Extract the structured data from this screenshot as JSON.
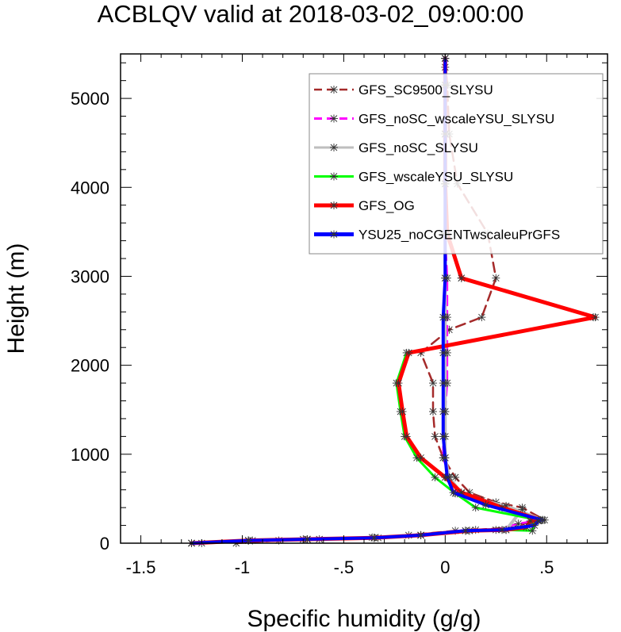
{
  "chart_data": {
    "type": "line",
    "title": "ACBLQV valid at 2018-03-02_09:00:00",
    "xlabel": "Specific humidity (g/g)",
    "ylabel": "Height (m)",
    "xlim": [
      -1.6,
      0.8
    ],
    "ylim": [
      0,
      5500
    ],
    "xticks": [
      -1.5,
      -1,
      -0.5,
      0,
      0.5
    ],
    "xtick_labels": [
      "-1.5",
      "-1",
      "-.5",
      "0",
      ".5"
    ],
    "yticks": [
      0,
      1000,
      2000,
      3000,
      4000,
      5000
    ],
    "ytick_labels": [
      "0",
      "1000",
      "2000",
      "3000",
      "4000",
      "5000"
    ],
    "grid": false,
    "legend_position": "top-right",
    "series": [
      {
        "name": "GFS_SC9500_SLYSU",
        "color": "#a52a2a",
        "dash": "dashed",
        "x": [
          -1.03,
          -0.82,
          -0.62,
          -0.36,
          -0.18,
          0.05,
          0.15,
          0.35,
          0.42,
          0.49,
          0.38,
          0.25,
          0.12,
          0.05,
          -0.01,
          -0.05,
          -0.06,
          -0.06,
          -0.12,
          0.02,
          0.18,
          0.25,
          0.21,
          0.06,
          0.02,
          0.01,
          0.0
        ],
        "y": [
          0,
          30,
          45,
          65,
          90,
          140,
          150,
          180,
          250,
          260,
          400,
          460,
          570,
          740,
          960,
          1200,
          1480,
          1800,
          2140,
          2400,
          2540,
          2980,
          3480,
          4040,
          4600,
          5150,
          5450
        ]
      },
      {
        "name": "GFS_noSC_wscaleYSU_SLYSU",
        "color": "#ff00ff",
        "dash": "dashed",
        "x": [
          -1.25,
          -0.97,
          -0.68,
          -0.33,
          -0.12,
          0.1,
          0.25,
          0.36,
          0.44,
          0.48,
          0.2,
          0.06,
          0.02,
          -0.01,
          -0.01,
          0.0,
          0.01,
          0.01,
          0.01,
          0.01,
          0.0,
          0.0,
          0.0,
          0.0,
          0.0,
          0.0
        ],
        "y": [
          0,
          30,
          45,
          60,
          90,
          140,
          150,
          220,
          250,
          260,
          450,
          560,
          750,
          960,
          1200,
          1480,
          1800,
          2140,
          2540,
          2980,
          3480,
          4040,
          4600,
          5150,
          5350,
          5450
        ]
      },
      {
        "name": "GFS_noSC_SLYSU",
        "color": "#bebebe",
        "dash": "solid",
        "x": [
          -1.2,
          -0.95,
          -0.7,
          -0.35,
          -0.12,
          0.12,
          0.3,
          0.38,
          0.42,
          0.48,
          0.3,
          0.18,
          0.08,
          0.02,
          0.0,
          0.0,
          0.0,
          0.0,
          0.0,
          0.0,
          0.0,
          0.0,
          0.0,
          0.0,
          0.0,
          0.0
        ],
        "y": [
          0,
          30,
          45,
          60,
          90,
          140,
          150,
          380,
          250,
          260,
          420,
          480,
          560,
          740,
          960,
          1200,
          1480,
          1800,
          2140,
          2540,
          2980,
          3480,
          4040,
          4600,
          5150,
          5450
        ]
      },
      {
        "name": "GFS_wscaleYSU_SLYSU",
        "color": "#00ff00",
        "dash": "solid",
        "x": [
          -1.25,
          -0.97,
          -0.68,
          -0.35,
          -0.12,
          0.1,
          0.3,
          0.43,
          0.44,
          0.46,
          0.15,
          0.05,
          -0.05,
          -0.14,
          -0.2,
          -0.22,
          -0.24,
          -0.19,
          0.73,
          0.08,
          0.01,
          0.0,
          0.0,
          0.0,
          0.0
        ],
        "y": [
          0,
          30,
          45,
          60,
          90,
          140,
          150,
          140,
          250,
          260,
          400,
          560,
          740,
          960,
          1200,
          1480,
          1800,
          2140,
          2540,
          2980,
          3480,
          4040,
          4600,
          5150,
          5450
        ]
      },
      {
        "name": "GFS_OG",
        "color": "#ff0000",
        "dash": "solid",
        "x": [
          -1.25,
          -0.97,
          -0.68,
          -0.35,
          -0.12,
          0.12,
          0.3,
          0.4,
          0.42,
          0.47,
          0.28,
          0.08,
          0.0,
          -0.12,
          -0.19,
          -0.21,
          -0.23,
          -0.18,
          0.74,
          0.08,
          0.01,
          0.0,
          0.0,
          0.0,
          0.0
        ],
        "y": [
          0,
          30,
          45,
          60,
          90,
          140,
          150,
          180,
          250,
          260,
          400,
          570,
          740,
          960,
          1200,
          1480,
          1800,
          2140,
          2540,
          2980,
          3480,
          4040,
          4600,
          5150,
          5450
        ]
      },
      {
        "name": "YSU25_noCGENTwscaleuPrGFS",
        "color": "#0000ff",
        "dash": "solid",
        "x": [
          -1.25,
          -0.97,
          -0.68,
          -0.35,
          -0.12,
          0.1,
          0.28,
          0.44,
          0.46,
          0.48,
          0.2,
          0.04,
          0.01,
          0.0,
          -0.01,
          -0.01,
          -0.01,
          -0.01,
          -0.01,
          0.0,
          0.0,
          0.0,
          0.0,
          0.0,
          0.0
        ],
        "y": [
          0,
          30,
          45,
          60,
          90,
          140,
          150,
          200,
          250,
          260,
          430,
          570,
          740,
          960,
          1200,
          1480,
          1800,
          2140,
          2540,
          2980,
          3480,
          4040,
          4600,
          5150,
          5450
        ]
      }
    ]
  }
}
